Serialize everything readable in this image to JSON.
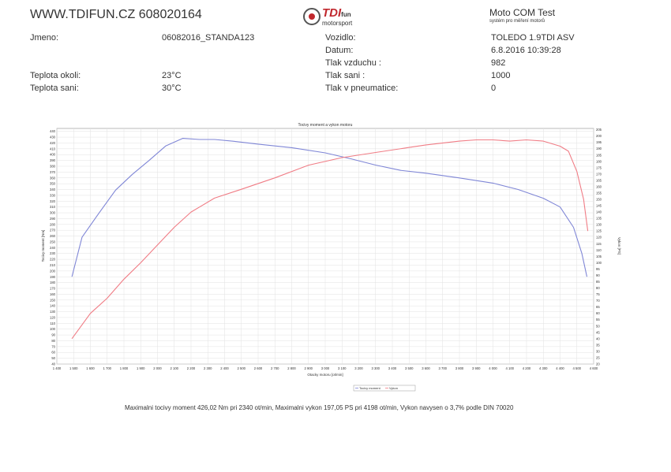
{
  "header": {
    "site": "WWW.TDIFUN.CZ 608020164",
    "logo_main": "TDI",
    "logo_suffix": "fun",
    "logo_sub": "motorsport",
    "title": "Moto COM Test",
    "subtitle": "systém pro měření motorů"
  },
  "info": {
    "jmeno_label": "Jmeno:",
    "jmeno_value": "06082016_STANDA123",
    "vozidlo_label": "Vozidlo:",
    "vozidlo_value": "TOLEDO 1.9TDI ASV",
    "datum_label": "Datum:",
    "datum_value": "6.8.2016 10:39:28",
    "tlak_vzduchu_label": "Tlak vzduchu :",
    "tlak_vzduchu_value": "982",
    "teplota_okoli_label": "Teplota okoli:",
    "teplota_okoli_value": "23°C",
    "tlak_sani_label": "Tlak sani :",
    "tlak_sani_value": "1000",
    "teplota_sani_label": "Teplota sani:",
    "teplota_sani_value": "30°C",
    "tlak_pneu_label": "Tlak v pneumatice:",
    "tlak_pneu_value": "0"
  },
  "footnote": "Maximalni tocivy moment 426,02 Nm pri 2340 ot/min,  Maximalni vykon 197,05 PS pri 4198 ot/min,  Vykon navysen o 3,7% podle DIN 70020",
  "chart_data": {
    "type": "line",
    "title": "Tocivy moment a vykon motoru",
    "xlabel": "Otacky motoru [ot/min]",
    "ylabel_left": "Tocivy moment [Nm]",
    "ylabel_right": "Vykon [PS]",
    "xlim": [
      1400,
      4600
    ],
    "xticks": [
      1400,
      1500,
      1600,
      1700,
      1800,
      1900,
      2000,
      2100,
      2200,
      2300,
      2400,
      2500,
      2600,
      2700,
      2800,
      2900,
      3000,
      3100,
      3200,
      3300,
      3400,
      3500,
      3600,
      3700,
      3800,
      3900,
      4000,
      4100,
      4200,
      4300,
      4400,
      4500,
      4600
    ],
    "xtick_labels": [
      "1 400",
      "1 500",
      "1 600",
      "1 700",
      "1 800",
      "1 900",
      "2 000",
      "2 100",
      "2 200",
      "2 300",
      "2 400",
      "2 500",
      "2 600",
      "2 700",
      "2 800",
      "2 900",
      "3 000",
      "3 100",
      "3 200",
      "3 300",
      "3 400",
      "3 500",
      "3 600",
      "3 700",
      "3 800",
      "3 900",
      "4 000",
      "4 100",
      "4 200",
      "4 300",
      "4 400",
      "4 500",
      "4 600"
    ],
    "ylim_left": [
      40,
      445
    ],
    "yticks_left": [
      40,
      50,
      60,
      70,
      80,
      90,
      100,
      110,
      120,
      130,
      140,
      150,
      160,
      170,
      180,
      190,
      200,
      210,
      220,
      230,
      240,
      250,
      260,
      270,
      280,
      290,
      300,
      310,
      320,
      330,
      340,
      350,
      360,
      370,
      380,
      390,
      400,
      410,
      420,
      430,
      440
    ],
    "ylim_right": [
      20,
      206
    ],
    "yticks_right": [
      20,
      25,
      30,
      35,
      40,
      45,
      50,
      55,
      60,
      65,
      70,
      75,
      80,
      85,
      90,
      95,
      100,
      105,
      110,
      115,
      120,
      125,
      130,
      135,
      140,
      145,
      150,
      155,
      160,
      165,
      170,
      175,
      180,
      185,
      190,
      195,
      200,
      205
    ],
    "series": [
      {
        "name": "Tocivy moment",
        "axis": "left",
        "color": "#7f86d6",
        "x": [
          1490,
          1550,
          1650,
          1750,
          1850,
          1950,
          2050,
          2150,
          2250,
          2340,
          2450,
          2600,
          2800,
          3000,
          3150,
          3300,
          3450,
          3600,
          3800,
          4000,
          4150,
          4300,
          4400,
          4480,
          4530,
          4560
        ],
        "y": [
          190,
          258,
          299,
          339,
          366,
          390,
          415,
          428,
          426,
          426,
          423,
          418,
          412,
          403,
          393,
          382,
          373,
          368,
          360,
          351,
          340,
          325,
          310,
          275,
          230,
          190
        ]
      },
      {
        "name": "Vykon",
        "axis": "right",
        "color": "#f07c85",
        "x": [
          1490,
          1600,
          1700,
          1800,
          1900,
          2000,
          2100,
          2200,
          2340,
          2500,
          2700,
          2900,
          3100,
          3300,
          3500,
          3600,
          3800,
          3900,
          4000,
          4100,
          4198,
          4300,
          4400,
          4450,
          4500,
          4540,
          4565
        ],
        "y": [
          40,
          60,
          72,
          87,
          100,
          114,
          128,
          140,
          151,
          158,
          167,
          177,
          183,
          187,
          191,
          193,
          196,
          197,
          197,
          196,
          197,
          196,
          192,
          188,
          172,
          150,
          125
        ]
      }
    ],
    "legend": [
      "Tocivy moment",
      "Vykon"
    ],
    "legend_position": "bottom-center",
    "grid": true
  }
}
